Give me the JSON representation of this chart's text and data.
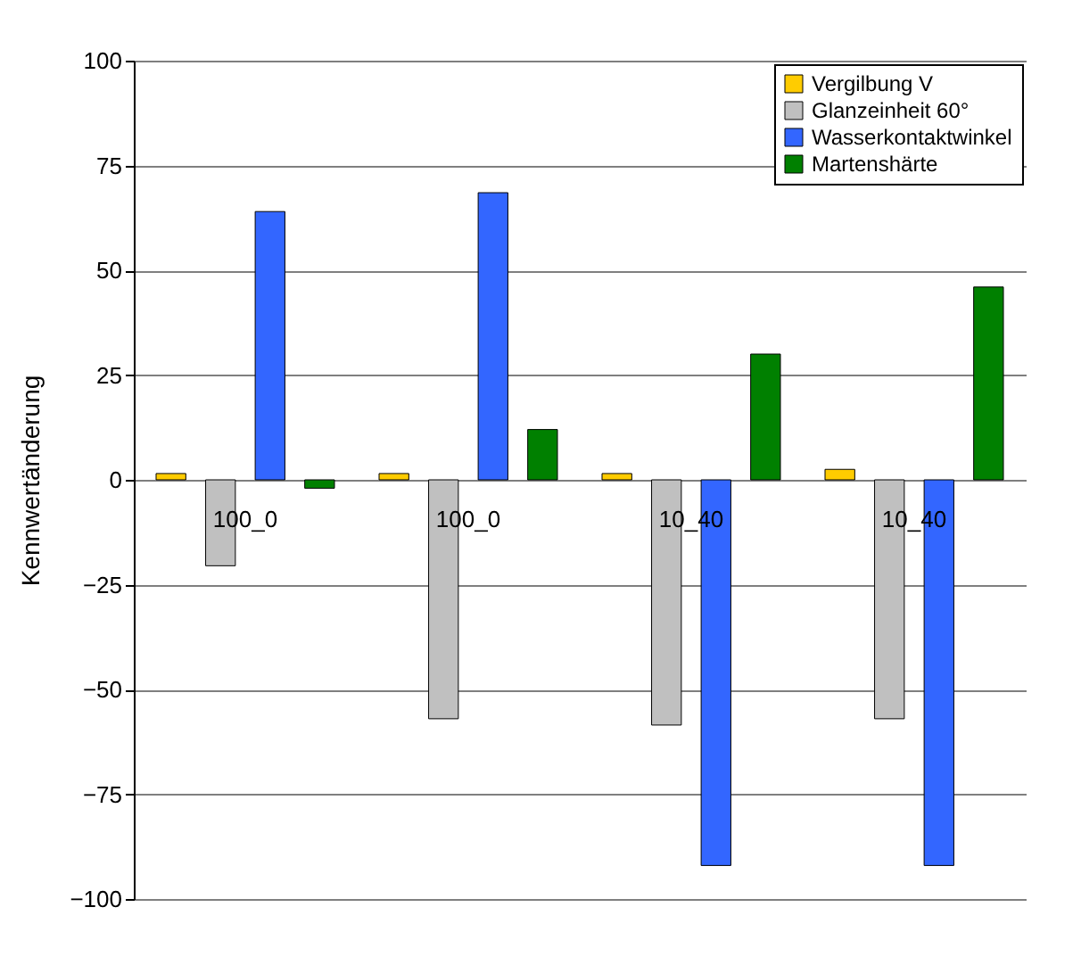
{
  "chart_data": {
    "type": "bar",
    "ylabel": "Kennwertänderung",
    "categories": [
      "100_0",
      "100_0",
      "10_40",
      "10_40"
    ],
    "series": [
      {
        "name": "Vergilbung V",
        "color": "#ffcc00",
        "values": [
          1.5,
          1.5,
          1.5,
          2.5
        ]
      },
      {
        "name": "Glanzeinheit 60°",
        "color": "#c0c0c0",
        "values": [
          -20.5,
          -57,
          -58.5,
          -57
        ]
      },
      {
        "name": "Wasserkontaktwinkel",
        "color": "#3366ff",
        "values": [
          64,
          68.5,
          -92,
          -92
        ]
      },
      {
        "name": "Martenshärte",
        "color": "#008000",
        "values": [
          -2,
          12,
          30,
          46
        ]
      }
    ],
    "ylim": [
      -100,
      100
    ],
    "yticks": [
      -100,
      -75,
      -50,
      -25,
      0,
      25,
      50,
      75,
      100
    ],
    "grid": "y",
    "legend": "top right"
  }
}
